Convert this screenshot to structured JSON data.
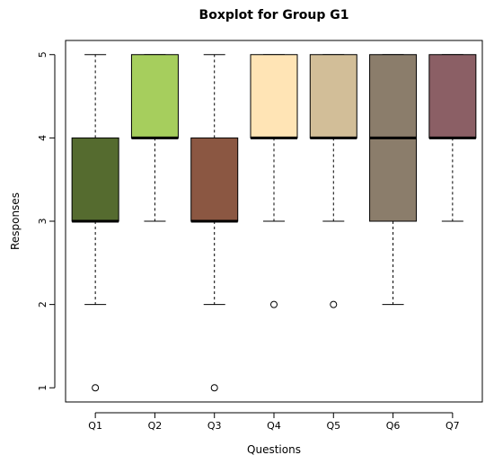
{
  "chart_data": {
    "type": "boxplot",
    "title": "Boxplot for Group G1",
    "xlabel": "Questions",
    "ylabel": "Responses",
    "ylim": [
      0.83,
      5.17
    ],
    "yticks": [
      1,
      2,
      3,
      4,
      5
    ],
    "grid": false,
    "categories": [
      "Q1",
      "Q2",
      "Q3",
      "Q4",
      "Q5",
      "Q6",
      "Q7"
    ],
    "boxes": [
      {
        "label": "Q1",
        "whisker_low": 2,
        "q1": 3,
        "median": 3,
        "q3": 4,
        "whisker_high": 5,
        "outliers": [
          1
        ],
        "color": "#556B2F"
      },
      {
        "label": "Q2",
        "whisker_low": 3,
        "q1": 4,
        "median": 4,
        "q3": 5,
        "whisker_high": 5,
        "outliers": [],
        "color": "#A6CE5D"
      },
      {
        "label": "Q3",
        "whisker_low": 2,
        "q1": 3,
        "median": 3,
        "q3": 4,
        "whisker_high": 5,
        "outliers": [
          1
        ],
        "color": "#8B5742"
      },
      {
        "label": "Q4",
        "whisker_low": 3,
        "q1": 4,
        "median": 4,
        "q3": 5,
        "whisker_high": 5,
        "outliers": [
          2
        ],
        "color": "#FFE4B5"
      },
      {
        "label": "Q5",
        "whisker_low": 3,
        "q1": 4,
        "median": 4,
        "q3": 5,
        "whisker_high": 5,
        "outliers": [
          2
        ],
        "color": "#D2BE98"
      },
      {
        "label": "Q6",
        "whisker_low": 2,
        "q1": 3,
        "median": 4,
        "q3": 5,
        "whisker_high": 5,
        "outliers": [],
        "color": "#8B7D6B"
      },
      {
        "label": "Q7",
        "whisker_low": 3,
        "q1": 4,
        "median": 4,
        "q3": 5,
        "whisker_high": 5,
        "outliers": [],
        "color": "#8B5F65"
      }
    ]
  }
}
